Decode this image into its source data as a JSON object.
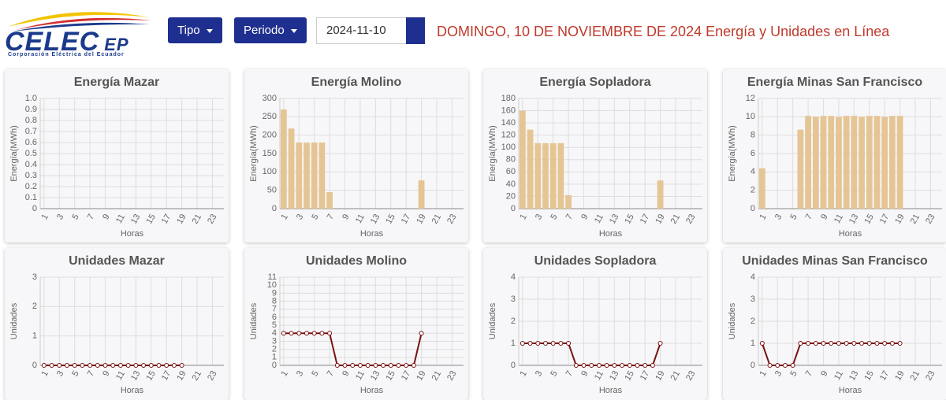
{
  "header": {
    "logo": "CELEC",
    "logo_suffix": "EP",
    "tagline": "Corporación Eléctrica del Ecuador",
    "buttons": [
      "Tipo",
      "Periodo"
    ],
    "date": "2024-11-10",
    "heading": "DOMINGO, 10 DE NOVIEMBRE DE 2024 Energía y Unidades en Línea"
  },
  "chart_data": [
    {
      "type": "bar",
      "title": "Energía Mazar",
      "xlabel": "Horas",
      "ylabel": "Energía(MWh)",
      "color": "#e5c594",
      "grid": true,
      "categories": [
        "1",
        null,
        "3",
        null,
        "5",
        null,
        "7",
        null,
        "9",
        null,
        "11",
        null,
        "13",
        null,
        "15",
        null,
        "17",
        null,
        "19",
        null,
        "21",
        null,
        "23",
        null
      ],
      "values": [
        0,
        0,
        0,
        0,
        0,
        0,
        0,
        0,
        0,
        0,
        0,
        0,
        0,
        0,
        0,
        0,
        0,
        0,
        0,
        null,
        null,
        null,
        null,
        null
      ],
      "ylim": [
        0,
        1
      ],
      "yticks": [
        0,
        0.1,
        0.2,
        0.3,
        0.4,
        0.5,
        0.6,
        0.7,
        0.8,
        0.9,
        {
          "value": 1,
          "label": "1.0"
        }
      ]
    },
    {
      "type": "bar",
      "title": "Energía Molino",
      "xlabel": "Horas",
      "ylabel": "Energía(MWh)",
      "color": "#e5c594",
      "grid": true,
      "categories": [
        "1",
        null,
        "3",
        null,
        "5",
        null,
        "7",
        null,
        "9",
        null,
        "11",
        null,
        "13",
        null,
        "15",
        null,
        "17",
        null,
        "19",
        null,
        "21",
        null,
        "23",
        null
      ],
      "values": [
        270,
        218,
        180,
        180,
        180,
        180,
        45,
        0,
        0,
        0,
        0,
        0,
        0,
        0,
        0,
        0,
        0,
        0,
        77,
        null,
        null,
        null,
        null,
        null
      ],
      "ylim": [
        0,
        300
      ],
      "yticks": [
        0,
        50,
        100,
        150,
        200,
        250,
        300
      ]
    },
    {
      "type": "bar",
      "title": "Energía Sopladora",
      "xlabel": "Horas",
      "ylabel": "Energía(MWh)",
      "color": "#e5c594",
      "grid": true,
      "categories": [
        "1",
        null,
        "3",
        null,
        "5",
        null,
        "7",
        null,
        "9",
        null,
        "11",
        null,
        "13",
        null,
        "15",
        null,
        "17",
        null,
        "19",
        null,
        "21",
        null,
        "23",
        null
      ],
      "values": [
        160,
        129,
        107,
        107,
        107,
        107,
        22,
        0,
        0,
        0,
        0,
        0,
        0,
        0,
        0,
        0,
        0,
        0,
        46,
        null,
        null,
        null,
        null,
        null
      ],
      "ylim": [
        0,
        180
      ],
      "yticks": [
        0,
        20,
        40,
        60,
        80,
        100,
        120,
        140,
        160,
        180
      ]
    },
    {
      "type": "bar",
      "title": "Energía Minas San Francisco",
      "xlabel": "Horas",
      "ylabel": "Energía(MWh)",
      "color": "#e5c594",
      "grid": true,
      "categories": [
        "1",
        null,
        "3",
        null,
        "5",
        null,
        "7",
        null,
        "9",
        null,
        "11",
        null,
        "13",
        null,
        "15",
        null,
        "17",
        null,
        "19",
        null,
        "21",
        null,
        "23",
        null
      ],
      "values": [
        4.4,
        0,
        0,
        0,
        0,
        8.6,
        10.1,
        10,
        10.1,
        10.1,
        10,
        10.1,
        10.1,
        10,
        10.1,
        10.1,
        10,
        10.1,
        10.1,
        null,
        null,
        null,
        null,
        null
      ],
      "ylim": [
        0,
        12
      ],
      "yticks": [
        0,
        2,
        4,
        6,
        8,
        10,
        12
      ]
    },
    {
      "type": "line",
      "title": "Unidades Mazar",
      "xlabel": "Horas",
      "ylabel": "Unidades",
      "color": "#7a1212",
      "grid": true,
      "categories": [
        "1",
        null,
        "3",
        null,
        "5",
        null,
        "7",
        null,
        "9",
        null,
        "11",
        null,
        "13",
        null,
        "15",
        null,
        "17",
        null,
        "19",
        null,
        "21",
        null,
        "23",
        null
      ],
      "values": [
        0,
        0,
        0,
        0,
        0,
        0,
        0,
        0,
        0,
        0,
        0,
        0,
        0,
        0,
        0,
        0,
        0,
        0,
        0,
        null,
        null,
        null,
        null,
        null
      ],
      "ylim": [
        0,
        3
      ],
      "yticks": [
        0,
        1,
        2,
        3
      ]
    },
    {
      "type": "line",
      "title": "Unidades Molino",
      "xlabel": "Horas",
      "ylabel": "Unidades",
      "color": "#7a1212",
      "grid": true,
      "categories": [
        "1",
        null,
        "3",
        null,
        "5",
        null,
        "7",
        null,
        "9",
        null,
        "11",
        null,
        "13",
        null,
        "15",
        null,
        "17",
        null,
        "19",
        null,
        "21",
        null,
        "23",
        null
      ],
      "values": [
        4,
        4,
        4,
        4,
        4,
        4,
        4,
        0,
        0,
        0,
        0,
        0,
        0,
        0,
        0,
        0,
        0,
        0,
        4,
        null,
        null,
        null,
        null,
        null
      ],
      "ylim": [
        0,
        11
      ],
      "yticks": [
        0,
        1,
        2,
        3,
        4,
        5,
        6,
        7,
        8,
        9,
        10,
        11
      ]
    },
    {
      "type": "line",
      "title": "Unidades Sopladora",
      "xlabel": "Horas",
      "ylabel": "Unidades",
      "color": "#7a1212",
      "grid": true,
      "categories": [
        "1",
        null,
        "3",
        null,
        "5",
        null,
        "7",
        null,
        "9",
        null,
        "11",
        null,
        "13",
        null,
        "15",
        null,
        "17",
        null,
        "19",
        null,
        "21",
        null,
        "23",
        null
      ],
      "values": [
        1,
        1,
        1,
        1,
        1,
        1,
        1,
        0,
        0,
        0,
        0,
        0,
        0,
        0,
        0,
        0,
        0,
        0,
        1,
        null,
        null,
        null,
        null,
        null
      ],
      "ylim": [
        0,
        4
      ],
      "yticks": [
        0,
        1,
        2,
        3,
        4
      ]
    },
    {
      "type": "line",
      "title": "Unidades Minas San Francisco",
      "xlabel": "Horas",
      "ylabel": "Unidades",
      "color": "#7a1212",
      "grid": true,
      "categories": [
        "1",
        null,
        "3",
        null,
        "5",
        null,
        "7",
        null,
        "9",
        null,
        "11",
        null,
        "13",
        null,
        "15",
        null,
        "17",
        null,
        "19",
        null,
        "21",
        null,
        "23",
        null
      ],
      "values": [
        1,
        0,
        0,
        0,
        0,
        1,
        1,
        1,
        1,
        1,
        1,
        1,
        1,
        1,
        1,
        1,
        1,
        1,
        1,
        null,
        null,
        null,
        null,
        null
      ],
      "ylim": [
        0,
        4
      ],
      "yticks": [
        0,
        1,
        2,
        3,
        4
      ]
    }
  ]
}
